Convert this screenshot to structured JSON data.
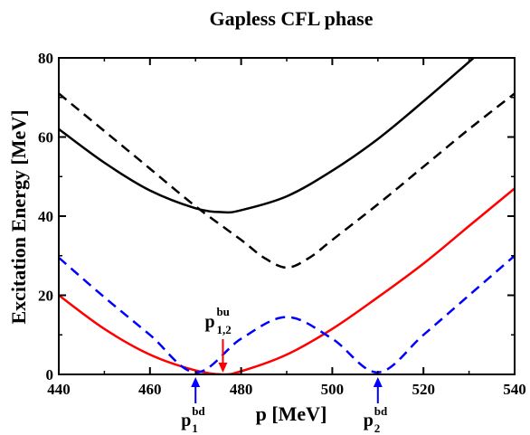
{
  "chart_data": {
    "type": "line",
    "title": "Gapless CFL phase",
    "xlabel": "p [MeV]",
    "ylabel": "Excitation Energy [MeV]",
    "xlim": [
      440,
      540
    ],
    "ylim": [
      0,
      80
    ],
    "xticks": [
      "440",
      "460",
      "480",
      "500",
      "520",
      "540"
    ],
    "yticks": [
      "0",
      "20",
      "40",
      "60",
      "80"
    ],
    "grid": false,
    "legend": "none",
    "series": [
      {
        "color": "#000000",
        "style": "solid",
        "x": [
          440,
          450,
          460,
          470,
          476,
          480,
          490,
          500,
          510,
          520,
          530,
          540
        ],
        "y": [
          62,
          53.5,
          46.5,
          42,
          41,
          41.5,
          45,
          51.5,
          59.5,
          69,
          79,
          89
        ]
      },
      {
        "color": "#000000",
        "style": "dashed",
        "x": [
          440,
          450,
          460,
          470,
          480,
          485,
          490,
          495,
          500,
          510,
          520,
          530,
          540
        ],
        "y": [
          71,
          61.5,
          52,
          42.5,
          34,
          29.5,
          27,
          29.5,
          34,
          43,
          52.5,
          62,
          71
        ]
      },
      {
        "color": "#ff0000",
        "style": "solid",
        "x": [
          440,
          450,
          460,
          470,
          476,
          480,
          490,
          500,
          510,
          520,
          530,
          540
        ],
        "y": [
          20,
          11.5,
          5,
          1,
          0,
          0.8,
          5,
          11.5,
          19.5,
          28,
          37.5,
          47
        ]
      },
      {
        "color": "#0000ff",
        "style": "dashed",
        "x": [
          440,
          450,
          460,
          470,
          480,
          490,
          500,
          510,
          520,
          530,
          540
        ],
        "y": [
          29.5,
          19.5,
          10,
          0.5,
          9,
          14.5,
          9,
          0.5,
          10,
          20,
          30
        ]
      }
    ],
    "annotations": [
      {
        "label": "p",
        "sub": "1,2",
        "sup": "bu",
        "x": 476,
        "color": "#ff0000",
        "position": "above"
      },
      {
        "label": "p",
        "sub": "1",
        "sup": "bd",
        "x": 470,
        "color": "#0000ff",
        "position": "below"
      },
      {
        "label": "p",
        "sub": "2",
        "sup": "bd",
        "x": 510,
        "color": "#0000ff",
        "position": "below"
      }
    ]
  }
}
